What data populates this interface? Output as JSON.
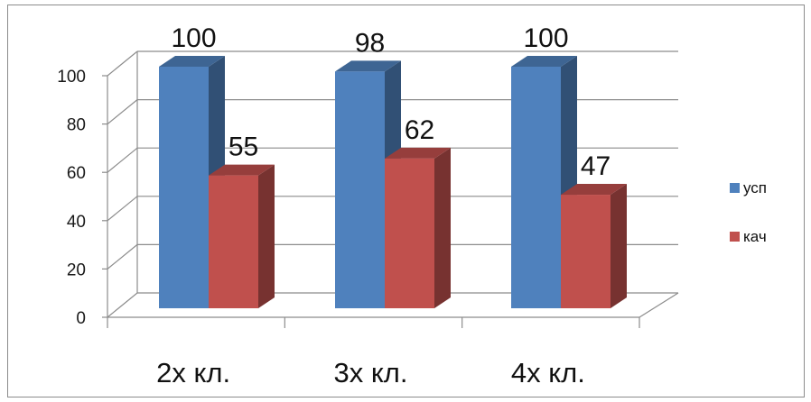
{
  "chart_data": {
    "type": "bar",
    "style": "3d-clustered-column",
    "categories": [
      "2х кл.",
      "3х кл.",
      "4х кл."
    ],
    "series": [
      {
        "name": "усп",
        "values": [
          100,
          98,
          100
        ],
        "color": "#4f81bd"
      },
      {
        "name": "кач",
        "values": [
          55,
          62,
          47
        ],
        "color": "#c0504d"
      }
    ],
    "yticks": [
      "0",
      "20",
      "40",
      "60",
      "80",
      "100"
    ],
    "ylim": [
      0,
      100
    ],
    "grid": true,
    "legend": "right",
    "data_labels": true
  }
}
